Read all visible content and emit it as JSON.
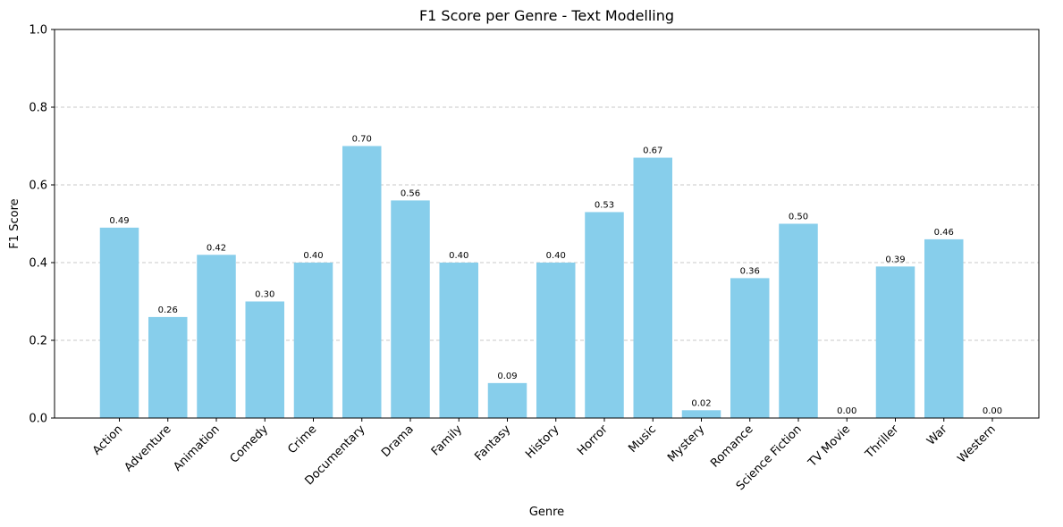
{
  "chart_data": {
    "type": "bar",
    "title": "F1 Score per Genre - Text Modelling",
    "xlabel": "Genre",
    "ylabel": "F1 Score",
    "ylim": [
      0,
      1.0
    ],
    "yticks": [
      0.0,
      0.2,
      0.4,
      0.6,
      0.8,
      1.0
    ],
    "ytick_labels": [
      "0.0",
      "0.2",
      "0.4",
      "0.6",
      "0.8",
      "1.0"
    ],
    "grid": "y-dashed",
    "bar_color": "#87ceeb",
    "categories": [
      "Action",
      "Adventure",
      "Animation",
      "Comedy",
      "Crime",
      "Documentary",
      "Drama",
      "Family",
      "Fantasy",
      "History",
      "Horror",
      "Music",
      "Mystery",
      "Romance",
      "Science Fiction",
      "TV Movie",
      "Thriller",
      "War",
      "Western"
    ],
    "values": [
      0.49,
      0.26,
      0.42,
      0.3,
      0.4,
      0.7,
      0.56,
      0.4,
      0.09,
      0.4,
      0.53,
      0.67,
      0.02,
      0.36,
      0.5,
      0.0,
      0.39,
      0.46,
      0.0
    ],
    "value_labels": [
      "0.49",
      "0.26",
      "0.42",
      "0.30",
      "0.40",
      "0.70",
      "0.56",
      "0.40",
      "0.09",
      "0.40",
      "0.53",
      "0.67",
      "0.02",
      "0.36",
      "0.50",
      "0.00",
      "0.39",
      "0.46",
      "0.00"
    ]
  }
}
